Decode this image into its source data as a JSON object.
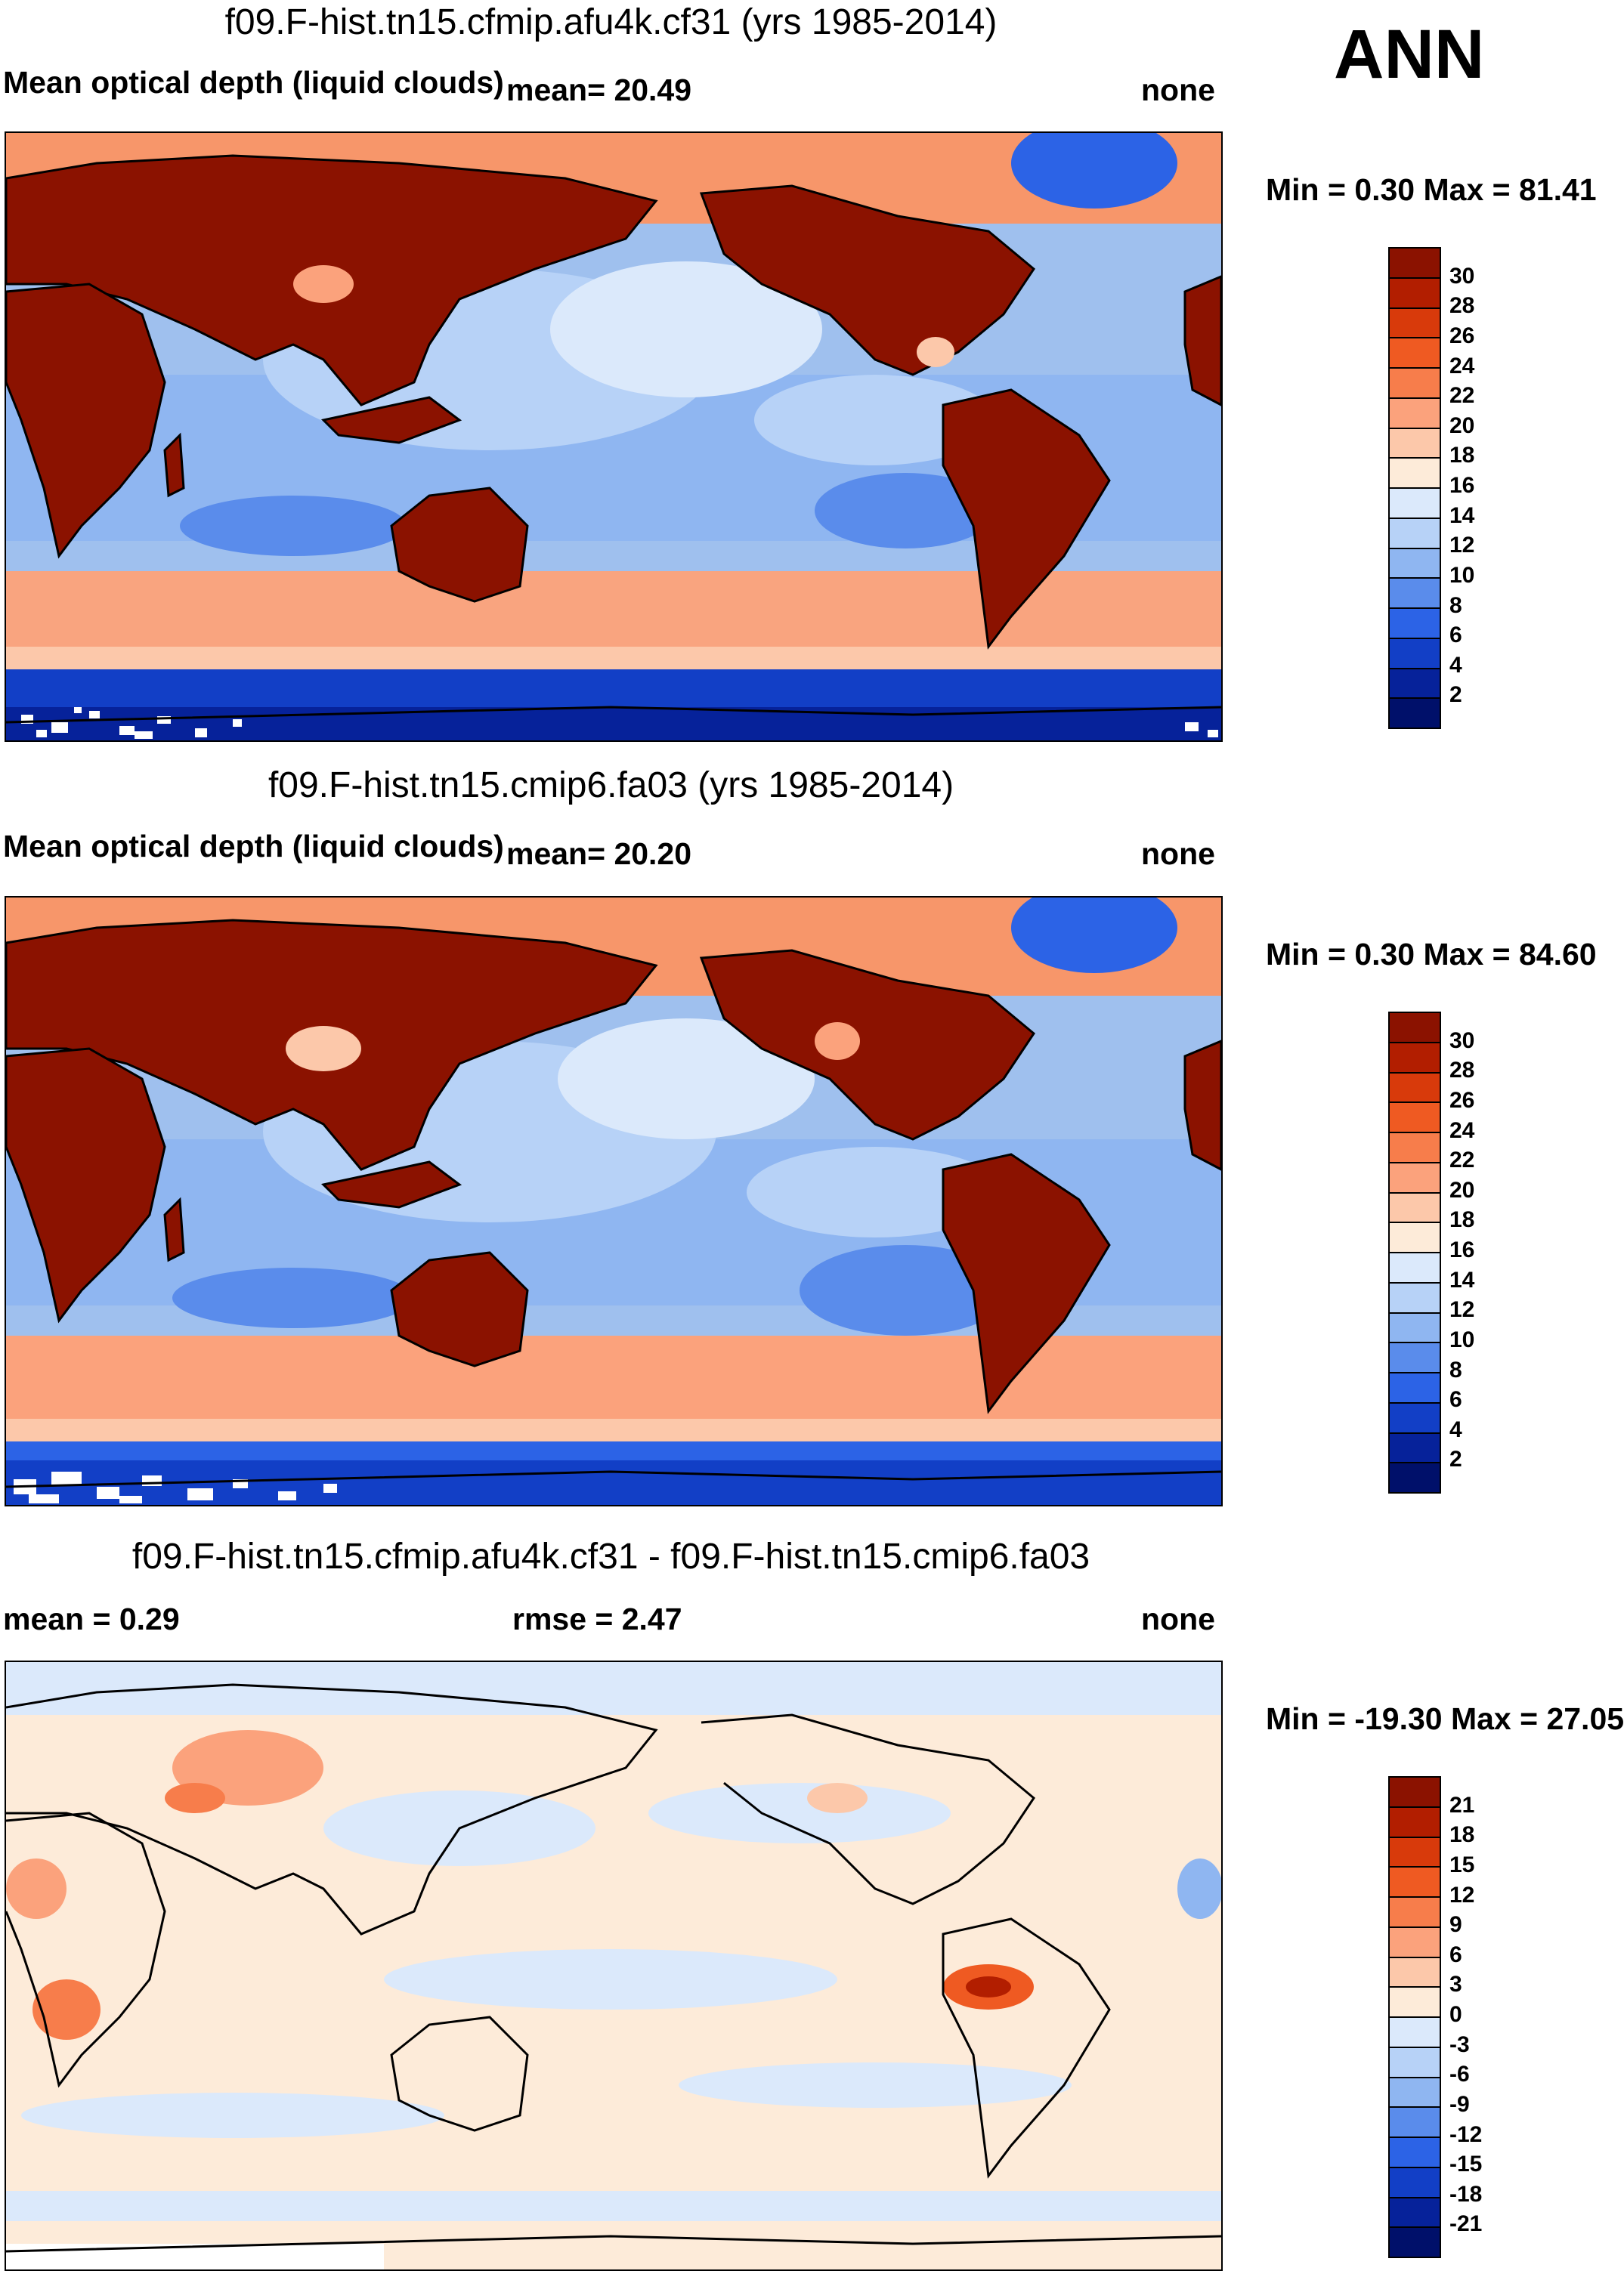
{
  "season": "ANN",
  "panels": [
    {
      "id": "top",
      "title": "f09.F-hist.tn15.cfmip.afu4k.cf31 (yrs 1985-2014)",
      "left_label": "Mean optical depth (liquid clouds)",
      "mid_label": "mean=  20.49",
      "right_label": "none",
      "minmax": "Min =   0.30 Max =  81.41",
      "colorbar": {
        "labels": [
          "30",
          "28",
          "26",
          "24",
          "22",
          "20",
          "18",
          "16",
          "14",
          "12",
          "10",
          "8",
          "6",
          "4",
          "2"
        ],
        "colors": [
          "#8b1200",
          "#b21e00",
          "#d83a0b",
          "#ef5a22",
          "#f77d4b",
          "#fba27c",
          "#fcc8aa",
          "#fdebd9",
          "#dbe9fb",
          "#b7d2f7",
          "#8fb6f1",
          "#5a8ceb",
          "#2c63e6",
          "#123fc6",
          "#06229a",
          "#00106a"
        ]
      }
    },
    {
      "id": "middle",
      "title": "f09.F-hist.tn15.cmip6.fa03 (yrs 1985-2014)",
      "left_label": "Mean optical depth (liquid clouds)",
      "mid_label": "mean=  20.20",
      "right_label": "none",
      "minmax": "Min =   0.30 Max =  84.60",
      "colorbar": {
        "labels": [
          "30",
          "28",
          "26",
          "24",
          "22",
          "20",
          "18",
          "16",
          "14",
          "12",
          "10",
          "8",
          "6",
          "4",
          "2"
        ],
        "colors": [
          "#8b1200",
          "#b21e00",
          "#d83a0b",
          "#ef5a22",
          "#f77d4b",
          "#fba27c",
          "#fcc8aa",
          "#fdebd9",
          "#dbe9fb",
          "#b7d2f7",
          "#8fb6f1",
          "#5a8ceb",
          "#2c63e6",
          "#123fc6",
          "#06229a",
          "#00106a"
        ]
      }
    },
    {
      "id": "bottom",
      "title": "f09.F-hist.tn15.cfmip.afu4k.cf31 - f09.F-hist.tn15.cmip6.fa03",
      "mean_label": "mean =   0.29",
      "rmse_label": "rmse =   2.47",
      "right_label": "none",
      "minmax": "Min = -19.30 Max =  27.05",
      "colorbar": {
        "labels": [
          "21",
          "18",
          "15",
          "12",
          "9",
          "6",
          "3",
          "0",
          "-3",
          "-6",
          "-9",
          "-12",
          "-15",
          "-18",
          "-21"
        ],
        "colors": [
          "#8b1200",
          "#b21e00",
          "#d83a0b",
          "#ef5a22",
          "#f77d4b",
          "#fba27c",
          "#fcc8aa",
          "#fdebd9",
          "#dbe9fb",
          "#b7d2f7",
          "#8fb6f1",
          "#5a8ceb",
          "#2c63e6",
          "#123fc6",
          "#06229a",
          "#00106a"
        ]
      }
    }
  ]
}
